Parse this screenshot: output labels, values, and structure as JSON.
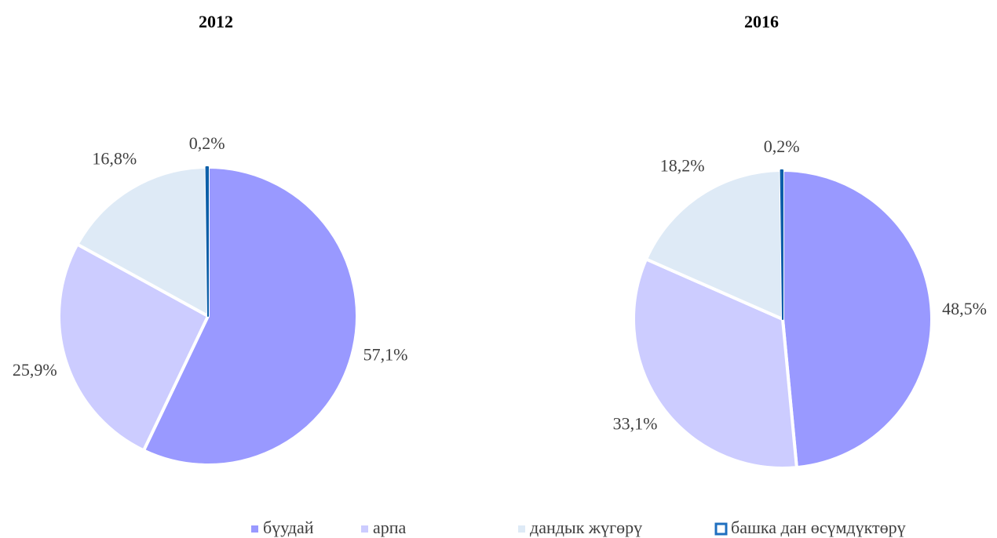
{
  "chart_data": [
    {
      "type": "pie",
      "title": "2012",
      "categories": [
        "бүудай",
        "арпа",
        "дандык жүгөрү",
        "башка дан өсүмдүктөрү"
      ],
      "values": [
        57.1,
        25.9,
        16.8,
        0.2
      ],
      "value_labels": [
        "57,1%",
        "25,9%",
        "16,8%",
        "0,2%"
      ],
      "colors": [
        "#9999ff",
        "#ccccff",
        "#deeaf6",
        "#1f6fbf"
      ]
    },
    {
      "type": "pie",
      "title": "2016",
      "categories": [
        "бүудай",
        "арпа",
        "дандык жүгөрү",
        "башка дан өсүмдүктөрү"
      ],
      "values": [
        48.5,
        33.1,
        18.2,
        0.2
      ],
      "value_labels": [
        "48,5%",
        "33,1%",
        "18,2%",
        "0,2%"
      ],
      "colors": [
        "#9999ff",
        "#ccccff",
        "#deeaf6",
        "#1f6fbf"
      ]
    }
  ]
}
